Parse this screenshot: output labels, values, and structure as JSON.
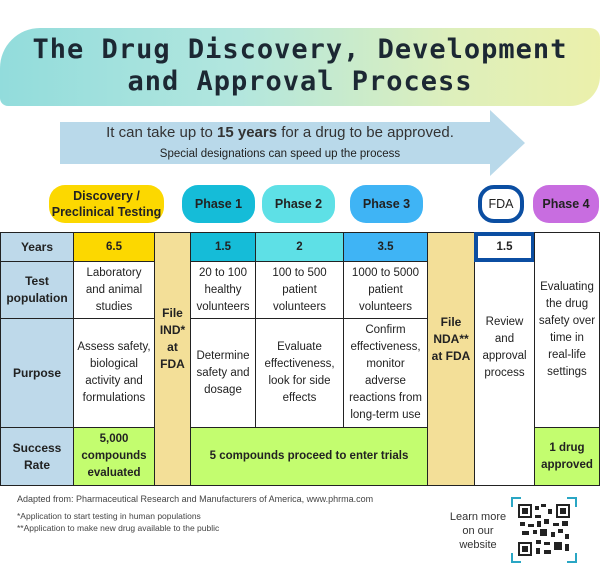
{
  "title": "The Drug Discovery, Development and Approval Process",
  "arrow": {
    "text_before": "It can take up to ",
    "text_bold": "15 years",
    "text_after": " for a drug to be approved.",
    "subtitle": "Special designations can speed up the process"
  },
  "stages": {
    "discovery": "Discovery / Preclinical Testing",
    "phase1": "Phase 1",
    "phase2": "Phase 2",
    "phase3": "Phase 3",
    "fda": "FDA",
    "phase4": "Phase 4"
  },
  "row_labels": {
    "years": "Years",
    "test_population": "Test population",
    "purpose": "Purpose",
    "success_rate": "Success Rate"
  },
  "years": {
    "discovery": "6.5",
    "phase1": "1.5",
    "phase2": "2",
    "phase3": "3.5",
    "fda": "1.5"
  },
  "test_population": {
    "discovery": "Laboratory and animal studies",
    "phase1": "20 to 100 healthy volunteers",
    "phase2": "100 to 500 patient volunteers",
    "phase3": "1000 to 5000 patient volunteers"
  },
  "purpose": {
    "discovery": "Assess safety, biological activity and formulations",
    "phase1": "Determine safety and dosage",
    "phase2": "Evaluate effectiveness, look for side effects",
    "phase3": "Confirm effectiveness, monitor adverse reactions from long-term use",
    "fda": "Review and approval process",
    "phase4": "Evaluating the drug safety over time in real-life settings"
  },
  "filings": {
    "ind": "File IND* at FDA",
    "nda": "File NDA** at FDA"
  },
  "success_rate": {
    "discovery": "5,000 compounds evaluated",
    "trials": "5 compounds proceed to enter trials",
    "phase4": "1 drug approved"
  },
  "footer": {
    "source": "Adapted from: Pharmaceutical Research and Manufacturers of America, www.phrma.com",
    "note1": "*Application to start testing in human populations",
    "note2": "**Application to make new drug available to the public",
    "learn_more": "Learn more on our website"
  },
  "colors": {
    "discovery": "#fcd800",
    "phase1": "#15bcd8",
    "phase2": "#5ee0e6",
    "phase3": "#3fb4f5",
    "fda": "#0b4ea2",
    "phase4": "#c86de0",
    "labels": "#bed9ea",
    "filing": "#f3df98",
    "success": "#c3fd6f"
  }
}
